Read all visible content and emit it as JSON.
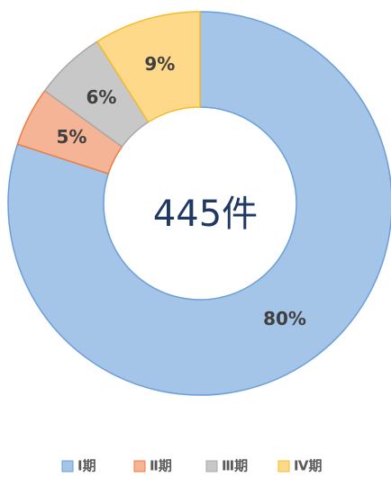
{
  "chart_data": {
    "type": "donut",
    "center_label": "445件",
    "categories": [
      "Ⅰ期",
      "Ⅱ期",
      "Ⅲ期",
      "Ⅳ期"
    ],
    "values": [
      80,
      5,
      6,
      9
    ],
    "value_labels": [
      "80%",
      "5%",
      "6%",
      "9%"
    ],
    "colors": [
      "#a4c4e8",
      "#f6b496",
      "#c8c8c8",
      "#ffd98a"
    ],
    "stroke_colors": [
      "#6a9fd8",
      "#ee7d3f",
      "#a8a8a8",
      "#f2bc2c"
    ],
    "legend": "bottom"
  }
}
